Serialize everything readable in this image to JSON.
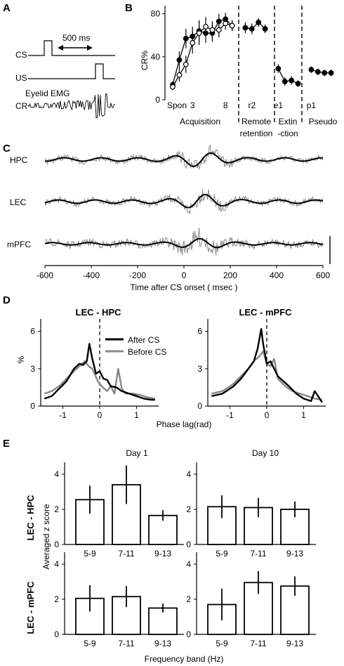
{
  "panel_labels": [
    "A",
    "B",
    "C",
    "D",
    "E"
  ],
  "panel_a": {
    "interval": "500 ms",
    "rows": [
      "CS",
      "US",
      "CR"
    ],
    "emg_label": "Eyelid EMG"
  },
  "chart_data": [
    {
      "id": "B",
      "type": "line",
      "ylabel": "CR%",
      "ylim": [
        0,
        85
      ],
      "yticks": [
        0,
        40,
        80
      ],
      "xticks": [
        "Spon",
        "3",
        "8",
        "r2",
        "e1",
        "p1"
      ],
      "phase_labels": [
        {
          "lines": [
            "Acquisition"
          ]
        },
        {
          "lines": [
            "Remote",
            "retention"
          ]
        },
        {
          "lines": [
            "Extin",
            "-ction"
          ]
        },
        {
          "lines": [
            "Pseudo"
          ]
        }
      ],
      "series": [
        {
          "filled": true,
          "x": [
            0,
            1,
            2,
            3,
            4,
            5,
            6,
            7,
            8,
            9
          ],
          "values": [
            14,
            37,
            57,
            59,
            64,
            62,
            62,
            73,
            75,
            69
          ],
          "err": [
            3,
            8,
            9,
            9,
            10,
            9,
            8,
            7,
            6,
            5
          ]
        },
        {
          "filled": false,
          "x": [
            0,
            1,
            2,
            3,
            4,
            5,
            6,
            7,
            8,
            9
          ],
          "values": [
            12,
            23,
            33,
            53,
            62,
            68,
            65,
            65,
            71,
            69
          ],
          "err": [
            3,
            6,
            8,
            10,
            11,
            9,
            8,
            7,
            6,
            5
          ]
        },
        {
          "filled": true,
          "x": [
            11,
            12,
            13,
            14
          ],
          "values": [
            67,
            66,
            72,
            66
          ],
          "err": [
            5,
            5,
            4,
            4
          ]
        },
        {
          "filled": true,
          "x": [
            16,
            17,
            18,
            19
          ],
          "values": [
            29,
            17,
            18,
            15
          ],
          "err": [
            4,
            4,
            4,
            3
          ]
        },
        {
          "filled": true,
          "x": [
            21,
            22,
            23,
            24
          ],
          "values": [
            28,
            26,
            25,
            25
          ],
          "err": [
            3,
            3,
            3,
            3
          ]
        }
      ]
    },
    {
      "id": "C",
      "type": "line",
      "xlabel": "Time after  CS onset (  msec )",
      "xlim": [
        -600,
        600
      ],
      "xticks": [
        -600,
        -400,
        -200,
        0,
        200,
        400,
        600
      ],
      "traces": [
        "HPC",
        "LEC",
        "mPFC"
      ]
    },
    {
      "id": "D-left",
      "type": "line",
      "title": "LEC - HPC",
      "ylabel": "%",
      "xlabel": "Phase lag(rad)",
      "xlim": [
        -1.6,
        1.6
      ],
      "ylim": [
        0,
        7
      ],
      "xticks": [
        -1,
        0,
        1
      ],
      "yticks": [
        0,
        3,
        6
      ],
      "legend": [
        "After CS",
        "Before CS"
      ],
      "series": [
        {
          "name": "After CS",
          "color": "#000000",
          "x": [
            -1.5,
            -1.3,
            -1.1,
            -0.9,
            -0.7,
            -0.55,
            -0.45,
            -0.35,
            -0.28,
            -0.2,
            -0.1,
            0,
            0.1,
            0.2,
            0.3,
            0.45,
            0.6,
            0.8,
            1.0,
            1.2,
            1.4,
            1.5
          ],
          "values": [
            0.6,
            0.8,
            1.4,
            2.0,
            3.0,
            3.4,
            3.3,
            3.6,
            5.0,
            3.8,
            2.6,
            2.8,
            2.2,
            2.1,
            1.6,
            1.5,
            1.2,
            1.0,
            0.8,
            0.6,
            0.5,
            0.5
          ]
        },
        {
          "name": "Before CS",
          "color": "#888888",
          "x": [
            -1.5,
            -1.3,
            -1.1,
            -0.9,
            -0.7,
            -0.55,
            -0.4,
            -0.3,
            -0.2,
            -0.05,
            0.05,
            0.2,
            0.3,
            0.4,
            0.5,
            0.6,
            0.7,
            0.9,
            1.1,
            1.3,
            1.5
          ],
          "values": [
            1.0,
            1.2,
            1.6,
            2.2,
            2.8,
            3.2,
            3.6,
            3.2,
            3.0,
            2.0,
            1.6,
            1.2,
            1.6,
            1.0,
            3.0,
            1.4,
            1.0,
            1.0,
            0.9,
            0.7,
            0.6
          ]
        }
      ]
    },
    {
      "id": "D-right",
      "type": "line",
      "title": "LEC - mPFC",
      "xlim": [
        -1.6,
        1.6
      ],
      "ylim": [
        0,
        7
      ],
      "xticks": [
        -1,
        0,
        1
      ],
      "yticks": [
        0,
        3,
        6
      ],
      "series": [
        {
          "name": "After CS",
          "color": "#000000",
          "x": [
            -1.5,
            -1.2,
            -0.9,
            -0.7,
            -0.5,
            -0.35,
            -0.25,
            -0.15,
            -0.1,
            -0.05,
            0,
            0.1,
            0.2,
            0.3,
            0.45,
            0.6,
            0.8,
            1.0,
            1.2,
            1.3,
            1.5
          ],
          "values": [
            0.8,
            1.0,
            1.6,
            2.2,
            3.0,
            3.6,
            4.6,
            6.2,
            5.0,
            4.2,
            3.4,
            3.6,
            3.0,
            2.4,
            2.0,
            1.6,
            1.0,
            0.6,
            0.4,
            1.2,
            0.3
          ]
        },
        {
          "name": "Before CS",
          "color": "#888888",
          "x": [
            -1.5,
            -1.2,
            -0.9,
            -0.7,
            -0.5,
            -0.35,
            -0.2,
            -0.1,
            0,
            0.1,
            0.2,
            0.3,
            0.5,
            0.7,
            0.9,
            1.1,
            1.3,
            1.5
          ],
          "values": [
            1.0,
            1.2,
            1.8,
            2.4,
            3.0,
            3.6,
            4.0,
            4.4,
            3.4,
            3.2,
            3.8,
            2.2,
            1.6,
            1.2,
            1.0,
            0.8,
            0.6,
            0.5
          ]
        }
      ]
    },
    {
      "id": "E-day1-hpc",
      "type": "bar",
      "title": "Day 1",
      "row_label": "LEC - HPC",
      "categories": [
        "5-9",
        "7-11",
        "9-13"
      ],
      "values": [
        2.55,
        3.4,
        1.65
      ],
      "err": [
        0.8,
        1.1,
        0.3
      ],
      "ylim": [
        0,
        5
      ],
      "yticks": [
        0,
        2,
        4
      ]
    },
    {
      "id": "E-day10-hpc",
      "type": "bar",
      "title": "Day 10",
      "categories": [
        "5-9",
        "7-11",
        "9-13"
      ],
      "values": [
        2.15,
        2.1,
        2.0
      ],
      "err": [
        0.65,
        0.55,
        0.45
      ],
      "ylim": [
        0,
        5
      ],
      "yticks": [
        0,
        2,
        4
      ]
    },
    {
      "id": "E-day1-mpfc",
      "type": "bar",
      "row_label": "LEC - mPFC",
      "categories": [
        "5-9",
        "7-11",
        "9-13"
      ],
      "values": [
        2.05,
        2.15,
        1.5
      ],
      "err": [
        0.75,
        0.6,
        0.25
      ],
      "ylim": [
        0,
        5
      ],
      "yticks": [
        0,
        2,
        4
      ]
    },
    {
      "id": "E-day10-mpfc",
      "type": "bar",
      "categories": [
        "5-9",
        "7-11",
        "9-13"
      ],
      "values": [
        1.7,
        2.95,
        2.75
      ],
      "err": [
        0.9,
        0.65,
        0.55
      ],
      "ylim": [
        0,
        5
      ],
      "yticks": [
        0,
        2,
        4
      ]
    }
  ],
  "panel_e": {
    "ylabel": "Averaged z score",
    "xlabel": "Frequency band (Hz)"
  }
}
